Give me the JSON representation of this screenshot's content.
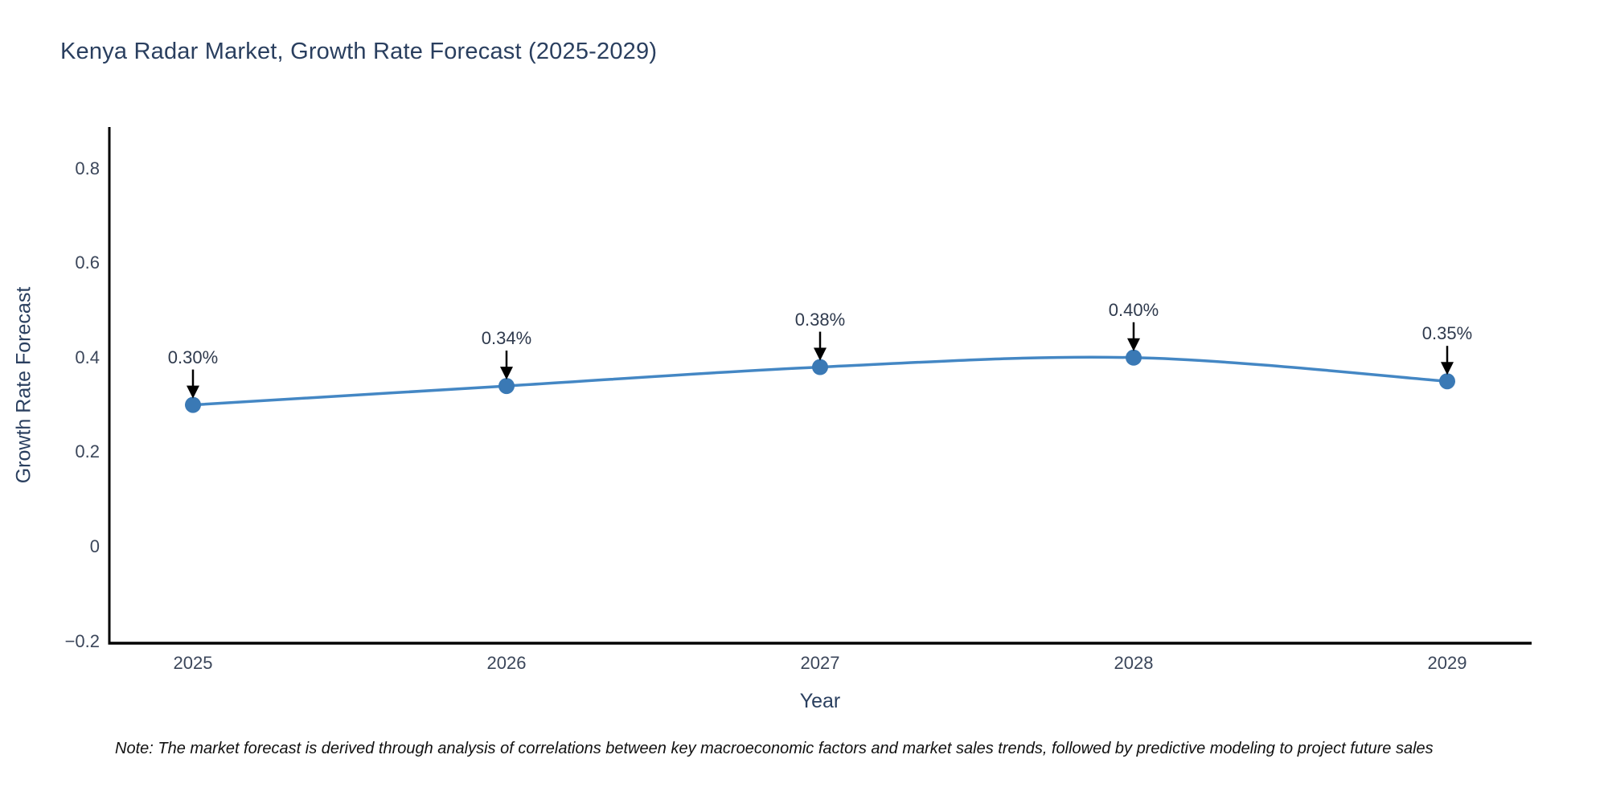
{
  "chart": {
    "title": "Kenya Radar Market, Growth Rate Forecast (2025-2029)",
    "xlabel": "Year",
    "ylabel": "Growth Rate Forecast",
    "note": "Note: The market forecast is derived through analysis of correlations between key macroeconomic factors and market sales trends, followed by predictive modeling to project future sales"
  },
  "chart_data": {
    "type": "line",
    "title": "Kenya Radar Market, Growth Rate Forecast (2025-2029)",
    "xlabel": "Year",
    "ylabel": "Growth Rate Forecast",
    "x": [
      2025,
      2026,
      2027,
      2028,
      2029
    ],
    "values": [
      0.3,
      0.34,
      0.38,
      0.4,
      0.35
    ],
    "point_labels": [
      "0.30%",
      "0.34%",
      "0.38%",
      "0.40%",
      "0.35%"
    ],
    "xtick_labels": [
      "2025",
      "2026",
      "2027",
      "2028",
      "2029"
    ],
    "yticks": [
      -0.2,
      0,
      0.2,
      0.4,
      0.6,
      0.8
    ],
    "ytick_labels": [
      "−0.2",
      "0",
      "0.2",
      "0.4",
      "0.6",
      "0.8"
    ],
    "ylim": [
      -0.2,
      0.89
    ],
    "grid": false,
    "legend": "none",
    "line_shape": "spline",
    "annotations_have_arrows": true,
    "colors": {
      "line": "#4487c4",
      "marker": "#3a79b5",
      "axis": "#000000",
      "arrow": "#000000",
      "tick_text": "#3b465a",
      "title_text": "#2a3f5f"
    }
  }
}
